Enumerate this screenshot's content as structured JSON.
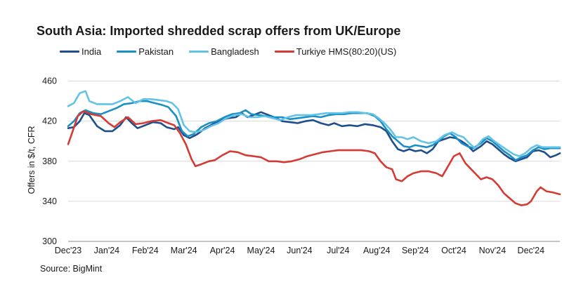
{
  "chart_data": {
    "type": "line",
    "title": "South Asia: Imported shredded scrap offers from UK/Europe",
    "ylabel": "Offers in $/t, CFR",
    "xlabel": "",
    "source": "Source: BigMint",
    "ylim": [
      300,
      480
    ],
    "yticks": [
      300,
      340,
      380,
      420,
      460
    ],
    "x_tick_labels": [
      "Dec'23",
      "Jan'24",
      "Feb'24",
      "Mar'24",
      "Apr'24",
      "May'24",
      "Jun'24",
      "Jul'24",
      "Aug'24",
      "Sep'24",
      "Oct'24",
      "Nov'24",
      "Dec'24"
    ],
    "x_range_months": [
      0,
      12.75
    ],
    "grid": true,
    "legend_position": "top",
    "series": [
      {
        "name": "India",
        "color": "#1f4e8c",
        "points": [
          [
            0.0,
            413
          ],
          [
            0.15,
            414
          ],
          [
            0.3,
            420
          ],
          [
            0.42,
            428
          ],
          [
            0.55,
            426
          ],
          [
            0.75,
            415
          ],
          [
            0.95,
            410
          ],
          [
            1.15,
            410
          ],
          [
            1.35,
            416
          ],
          [
            1.5,
            424
          ],
          [
            1.65,
            418
          ],
          [
            1.8,
            413
          ],
          [
            2.0,
            416
          ],
          [
            2.2,
            419
          ],
          [
            2.4,
            418
          ],
          [
            2.55,
            414
          ],
          [
            2.75,
            412
          ],
          [
            2.85,
            414
          ],
          [
            3.0,
            406
          ],
          [
            3.15,
            403
          ],
          [
            3.35,
            407
          ],
          [
            3.55,
            413
          ],
          [
            3.75,
            417
          ],
          [
            3.95,
            421
          ],
          [
            4.15,
            423
          ],
          [
            4.35,
            424
          ],
          [
            4.5,
            428
          ],
          [
            4.65,
            424
          ],
          [
            4.8,
            426
          ],
          [
            5.0,
            429
          ],
          [
            5.2,
            426
          ],
          [
            5.4,
            423
          ],
          [
            5.55,
            420
          ],
          [
            5.75,
            419
          ],
          [
            5.95,
            418
          ],
          [
            6.15,
            420
          ],
          [
            6.35,
            421
          ],
          [
            6.55,
            418
          ],
          [
            6.75,
            416
          ],
          [
            6.9,
            418
          ],
          [
            7.1,
            415
          ],
          [
            7.3,
            416
          ],
          [
            7.5,
            415
          ],
          [
            7.7,
            417
          ],
          [
            7.9,
            416
          ],
          [
            8.1,
            414
          ],
          [
            8.25,
            410
          ],
          [
            8.4,
            400
          ],
          [
            8.55,
            392
          ],
          [
            8.7,
            390
          ],
          [
            8.85,
            392
          ],
          [
            9.0,
            390
          ],
          [
            9.15,
            391
          ],
          [
            9.3,
            388
          ],
          [
            9.45,
            392
          ],
          [
            9.6,
            400
          ],
          [
            9.75,
            402
          ],
          [
            9.9,
            404
          ],
          [
            10.05,
            403
          ],
          [
            10.2,
            400
          ],
          [
            10.35,
            396
          ],
          [
            10.5,
            390
          ],
          [
            10.7,
            395
          ],
          [
            10.85,
            400
          ],
          [
            11.0,
            397
          ],
          [
            11.15,
            392
          ],
          [
            11.3,
            387
          ],
          [
            11.45,
            383
          ],
          [
            11.6,
            380
          ],
          [
            11.75,
            382
          ],
          [
            11.9,
            384
          ],
          [
            12.05,
            390
          ],
          [
            12.2,
            391
          ],
          [
            12.35,
            389
          ],
          [
            12.5,
            384
          ],
          [
            12.65,
            386
          ],
          [
            12.75,
            388
          ]
        ]
      },
      {
        "name": "Pakistan",
        "color": "#1a8fc4",
        "points": [
          [
            0.0,
            415
          ],
          [
            0.15,
            420
          ],
          [
            0.3,
            428
          ],
          [
            0.45,
            431
          ],
          [
            0.65,
            428
          ],
          [
            0.85,
            427
          ],
          [
            1.05,
            430
          ],
          [
            1.25,
            433
          ],
          [
            1.45,
            437
          ],
          [
            1.65,
            438
          ],
          [
            1.85,
            440
          ],
          [
            2.05,
            440
          ],
          [
            2.25,
            438
          ],
          [
            2.45,
            436
          ],
          [
            2.6,
            434
          ],
          [
            2.8,
            425
          ],
          [
            2.95,
            410
          ],
          [
            3.1,
            405
          ],
          [
            3.25,
            407
          ],
          [
            3.45,
            414
          ],
          [
            3.65,
            418
          ],
          [
            3.85,
            420
          ],
          [
            4.05,
            424
          ],
          [
            4.25,
            427
          ],
          [
            4.45,
            428
          ],
          [
            4.6,
            431
          ],
          [
            4.75,
            427
          ],
          [
            4.95,
            426
          ],
          [
            5.15,
            425
          ],
          [
            5.35,
            424
          ],
          [
            5.55,
            424
          ],
          [
            5.75,
            422
          ],
          [
            5.95,
            423
          ],
          [
            6.15,
            424
          ],
          [
            6.35,
            425
          ],
          [
            6.55,
            424
          ],
          [
            6.75,
            426
          ],
          [
            6.95,
            427
          ],
          [
            7.15,
            427
          ],
          [
            7.35,
            428
          ],
          [
            7.55,
            428
          ],
          [
            7.75,
            428
          ],
          [
            7.95,
            425
          ],
          [
            8.1,
            420
          ],
          [
            8.25,
            412
          ],
          [
            8.4,
            405
          ],
          [
            8.55,
            400
          ],
          [
            8.7,
            395
          ],
          [
            8.85,
            394
          ],
          [
            9.0,
            396
          ],
          [
            9.15,
            395
          ],
          [
            9.3,
            394
          ],
          [
            9.45,
            396
          ],
          [
            9.6,
            400
          ],
          [
            9.75,
            405
          ],
          [
            9.9,
            408
          ],
          [
            10.05,
            404
          ],
          [
            10.2,
            398
          ],
          [
            10.35,
            395
          ],
          [
            10.5,
            393
          ],
          [
            10.7,
            398
          ],
          [
            10.85,
            403
          ],
          [
            11.0,
            400
          ],
          [
            11.15,
            395
          ],
          [
            11.3,
            390
          ],
          [
            11.45,
            386
          ],
          [
            11.6,
            381
          ],
          [
            11.75,
            384
          ],
          [
            11.9,
            386
          ],
          [
            12.05,
            391
          ],
          [
            12.2,
            394
          ],
          [
            12.35,
            392
          ],
          [
            12.5,
            393
          ],
          [
            12.75,
            393
          ]
        ]
      },
      {
        "name": "Bangladesh",
        "color": "#62c3e6",
        "points": [
          [
            0.0,
            435
          ],
          [
            0.15,
            438
          ],
          [
            0.3,
            448
          ],
          [
            0.45,
            450
          ],
          [
            0.55,
            440
          ],
          [
            0.75,
            437
          ],
          [
            0.95,
            437
          ],
          [
            1.15,
            437
          ],
          [
            1.35,
            440
          ],
          [
            1.55,
            444
          ],
          [
            1.75,
            438
          ],
          [
            1.95,
            442
          ],
          [
            2.15,
            442
          ],
          [
            2.35,
            441
          ],
          [
            2.55,
            440
          ],
          [
            2.7,
            438
          ],
          [
            2.85,
            432
          ],
          [
            3.0,
            416
          ],
          [
            3.15,
            410
          ],
          [
            3.3,
            409
          ],
          [
            3.5,
            411
          ],
          [
            3.7,
            415
          ],
          [
            3.9,
            418
          ],
          [
            4.1,
            423
          ],
          [
            4.3,
            426
          ],
          [
            4.5,
            427
          ],
          [
            4.7,
            424
          ],
          [
            4.9,
            424
          ],
          [
            5.1,
            425
          ],
          [
            5.3,
            423
          ],
          [
            5.5,
            421
          ],
          [
            5.7,
            424
          ],
          [
            5.9,
            426
          ],
          [
            6.1,
            426
          ],
          [
            6.3,
            426
          ],
          [
            6.5,
            427
          ],
          [
            6.7,
            428
          ],
          [
            6.9,
            428
          ],
          [
            7.1,
            428
          ],
          [
            7.3,
            429
          ],
          [
            7.5,
            429
          ],
          [
            7.7,
            428
          ],
          [
            7.9,
            427
          ],
          [
            8.05,
            423
          ],
          [
            8.2,
            418
          ],
          [
            8.35,
            412
          ],
          [
            8.5,
            404
          ],
          [
            8.65,
            404
          ],
          [
            8.8,
            402
          ],
          [
            8.95,
            404
          ],
          [
            9.15,
            400
          ],
          [
            9.35,
            398
          ],
          [
            9.55,
            400
          ],
          [
            9.75,
            406
          ],
          [
            9.95,
            409
          ],
          [
            10.1,
            406
          ],
          [
            10.25,
            404
          ],
          [
            10.4,
            398
          ],
          [
            10.55,
            393
          ],
          [
            10.75,
            402
          ],
          [
            10.9,
            405
          ],
          [
            11.05,
            400
          ],
          [
            11.2,
            396
          ],
          [
            11.35,
            392
          ],
          [
            11.55,
            387
          ],
          [
            11.7,
            385
          ],
          [
            11.85,
            388
          ],
          [
            12.0,
            393
          ],
          [
            12.15,
            396
          ],
          [
            12.3,
            394
          ],
          [
            12.5,
            394
          ],
          [
            12.75,
            394
          ]
        ]
      },
      {
        "name": "Turkiye HMS(80:20)(US)",
        "color": "#d63a35",
        "points": [
          [
            0.0,
            397
          ],
          [
            0.1,
            408
          ],
          [
            0.25,
            425
          ],
          [
            0.4,
            430
          ],
          [
            0.6,
            427
          ],
          [
            0.85,
            425
          ],
          [
            1.05,
            418
          ],
          [
            1.2,
            414
          ],
          [
            1.35,
            419
          ],
          [
            1.55,
            424
          ],
          [
            1.75,
            417
          ],
          [
            1.95,
            418
          ],
          [
            2.15,
            420
          ],
          [
            2.4,
            421
          ],
          [
            2.6,
            418
          ],
          [
            2.75,
            416
          ],
          [
            2.9,
            408
          ],
          [
            3.05,
            397
          ],
          [
            3.2,
            382
          ],
          [
            3.3,
            375
          ],
          [
            3.45,
            377
          ],
          [
            3.65,
            380
          ],
          [
            3.8,
            381
          ],
          [
            4.0,
            386
          ],
          [
            4.2,
            390
          ],
          [
            4.4,
            389
          ],
          [
            4.6,
            386
          ],
          [
            4.8,
            385
          ],
          [
            5.0,
            384
          ],
          [
            5.2,
            380
          ],
          [
            5.4,
            380
          ],
          [
            5.6,
            379
          ],
          [
            5.8,
            380
          ],
          [
            6.0,
            382
          ],
          [
            6.2,
            385
          ],
          [
            6.4,
            387
          ],
          [
            6.6,
            389
          ],
          [
            6.8,
            390
          ],
          [
            7.0,
            391
          ],
          [
            7.2,
            391
          ],
          [
            7.4,
            391
          ],
          [
            7.6,
            391
          ],
          [
            7.8,
            390
          ],
          [
            7.95,
            388
          ],
          [
            8.1,
            380
          ],
          [
            8.25,
            374
          ],
          [
            8.4,
            372
          ],
          [
            8.5,
            362
          ],
          [
            8.65,
            360
          ],
          [
            8.8,
            365
          ],
          [
            8.95,
            368
          ],
          [
            9.15,
            370
          ],
          [
            9.35,
            370
          ],
          [
            9.55,
            368
          ],
          [
            9.7,
            365
          ],
          [
            9.85,
            375
          ],
          [
            10.0,
            385
          ],
          [
            10.15,
            388
          ],
          [
            10.3,
            378
          ],
          [
            10.45,
            372
          ],
          [
            10.55,
            368
          ],
          [
            10.7,
            362
          ],
          [
            10.85,
            364
          ],
          [
            11.0,
            362
          ],
          [
            11.15,
            356
          ],
          [
            11.3,
            348
          ],
          [
            11.45,
            343
          ],
          [
            11.6,
            338
          ],
          [
            11.75,
            336
          ],
          [
            11.9,
            337
          ],
          [
            12.0,
            340
          ],
          [
            12.15,
            350
          ],
          [
            12.25,
            354
          ],
          [
            12.4,
            350
          ],
          [
            12.55,
            349
          ],
          [
            12.75,
            347
          ]
        ]
      }
    ]
  }
}
